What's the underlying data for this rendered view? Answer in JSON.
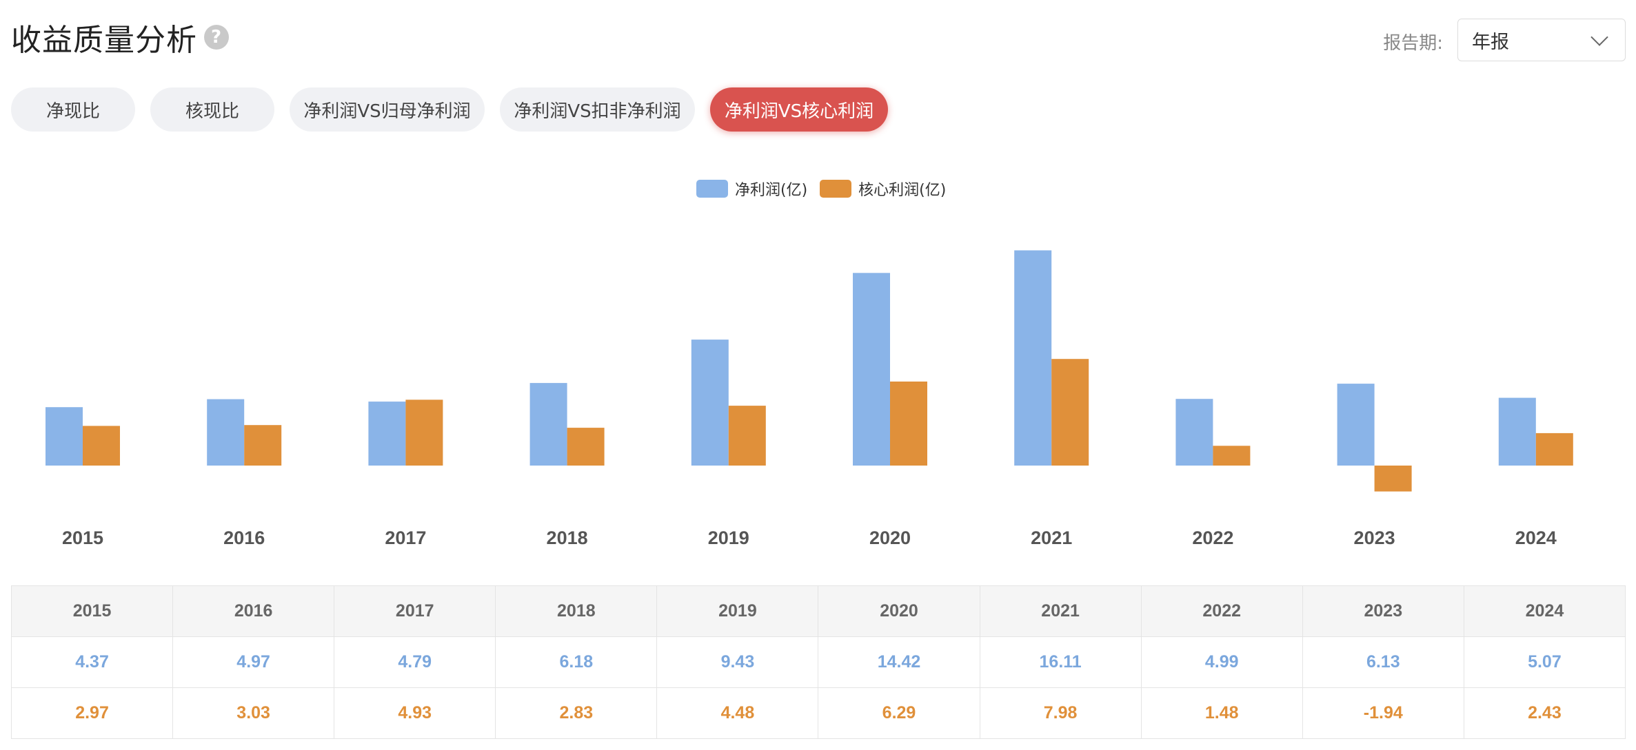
{
  "header": {
    "title": "收益质量分析",
    "help_glyph": "?"
  },
  "period": {
    "label": "报告期:",
    "value": "年报"
  },
  "tabs": [
    {
      "label": "净现比",
      "active": false
    },
    {
      "label": "核现比",
      "active": false
    },
    {
      "label": "净利润VS归母净利润",
      "active": false
    },
    {
      "label": "净利润VS扣非净利润",
      "active": false
    },
    {
      "label": "净利润VS核心利润",
      "active": true
    }
  ],
  "colors": {
    "net": "#8ab4e8",
    "core": "#e0903a",
    "active_tab": "#d9534f"
  },
  "chart_data": {
    "type": "bar",
    "categories": [
      "2015",
      "2016",
      "2017",
      "2018",
      "2019",
      "2020",
      "2021",
      "2022",
      "2023",
      "2024"
    ],
    "series": [
      {
        "name": "净利润(亿)",
        "values": [
          4.37,
          4.97,
          4.79,
          6.18,
          9.43,
          14.42,
          16.11,
          4.99,
          6.13,
          5.07
        ]
      },
      {
        "name": "核心利润(亿)",
        "values": [
          2.97,
          3.03,
          4.93,
          2.83,
          4.48,
          6.29,
          7.98,
          1.48,
          -1.94,
          2.43
        ]
      }
    ],
    "legend_position": "top-center",
    "grid": false
  },
  "table": {
    "headers": [
      "2015",
      "2016",
      "2017",
      "2018",
      "2019",
      "2020",
      "2021",
      "2022",
      "2023",
      "2024"
    ],
    "net_row": [
      "4.37",
      "4.97",
      "4.79",
      "6.18",
      "9.43",
      "14.42",
      "16.11",
      "4.99",
      "6.13",
      "5.07"
    ],
    "core_row": [
      "2.97",
      "3.03",
      "4.93",
      "2.83",
      "4.48",
      "6.29",
      "7.98",
      "1.48",
      "-1.94",
      "2.43"
    ]
  }
}
